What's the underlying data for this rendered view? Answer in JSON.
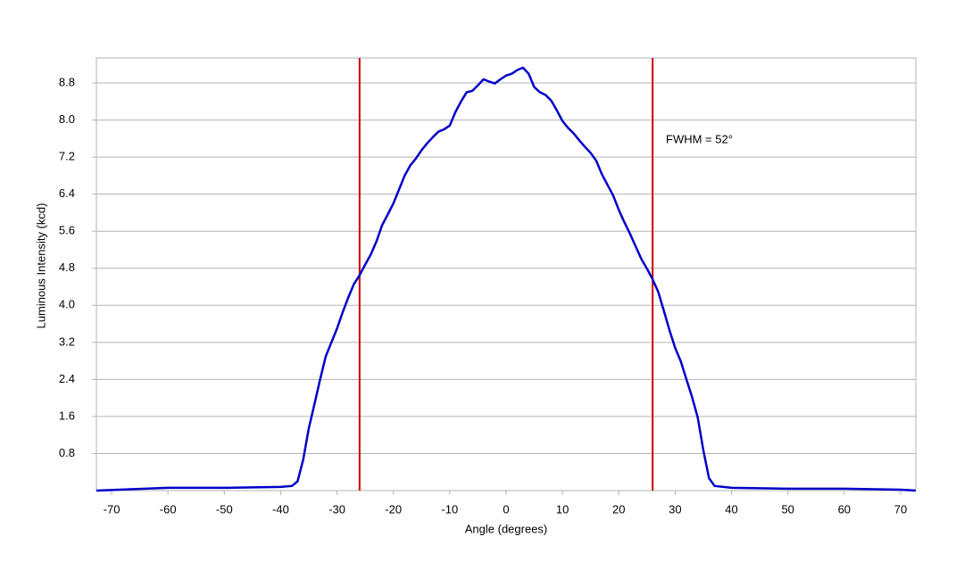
{
  "chart_data": {
    "type": "line",
    "xlabel": "Angle (degrees)",
    "ylabel": "Luminous Intensity (kcd)",
    "annotation": "FWHM = 52°",
    "x": [
      -72.7,
      -60,
      -50,
      -40,
      -38,
      -37,
      -36,
      -35,
      -34,
      -33,
      -32,
      -31,
      -30,
      -29,
      -28,
      -27,
      -26,
      -25,
      -24,
      -23,
      -22,
      -21,
      -20,
      -19,
      -18,
      -17,
      -16,
      -15,
      -14,
      -13,
      -12,
      -11,
      -10,
      -9,
      -8,
      -7,
      -6,
      -5,
      -4,
      -3,
      -2,
      -1,
      0,
      1,
      2,
      3,
      4,
      5,
      6,
      7,
      8,
      9,
      10,
      11,
      12,
      13,
      14,
      15,
      16,
      17,
      18,
      19,
      20,
      21,
      22,
      23,
      24,
      25,
      26,
      27,
      28,
      29,
      30,
      31,
      32,
      33,
      34,
      35,
      36,
      37,
      40,
      50,
      60,
      70,
      72.7
    ],
    "series": [
      {
        "color": "#0000c8",
        "values": [
          0.0,
          0.06,
          0.06,
          0.08,
          0.1,
          0.2,
          0.67,
          1.35,
          1.87,
          2.4,
          2.9,
          3.2,
          3.5,
          3.85,
          4.17,
          4.46,
          4.65,
          4.88,
          5.1,
          5.38,
          5.73,
          5.96,
          6.2,
          6.5,
          6.8,
          7.02,
          7.17,
          7.35,
          7.5,
          7.63,
          7.75,
          7.8,
          7.88,
          8.17,
          8.4,
          8.6,
          8.63,
          8.75,
          8.88,
          8.83,
          8.79,
          8.88,
          8.96,
          9.0,
          9.08,
          9.13,
          9.0,
          8.71,
          8.6,
          8.54,
          8.42,
          8.21,
          7.98,
          7.83,
          7.71,
          7.56,
          7.42,
          7.29,
          7.12,
          6.83,
          6.6,
          6.37,
          6.06,
          5.79,
          5.54,
          5.27,
          5.0,
          4.79,
          4.56,
          4.29,
          3.88,
          3.46,
          3.08,
          2.79,
          2.4,
          2.02,
          1.58,
          0.87,
          0.27,
          0.1,
          0.06,
          0.04,
          0.04,
          0.02,
          0.0
        ]
      }
    ],
    "vlines": [
      -26,
      26
    ],
    "vline_color": "#cc0000",
    "xlim": [
      -72.7,
      72.7
    ],
    "xticks": [
      -70,
      -60,
      -50,
      -40,
      -30,
      -20,
      -10,
      0,
      10,
      20,
      30,
      40,
      50,
      60,
      70
    ],
    "ylim": [
      0,
      9.34
    ],
    "yticks": [
      0.8,
      1.6,
      2.4,
      3.2,
      {
        "value": 4,
        "label": "4.0"
      },
      4.8,
      5.6,
      6.4,
      7.2,
      {
        "value": 8,
        "label": "8.0"
      },
      8.8
    ],
    "grid": true
  }
}
